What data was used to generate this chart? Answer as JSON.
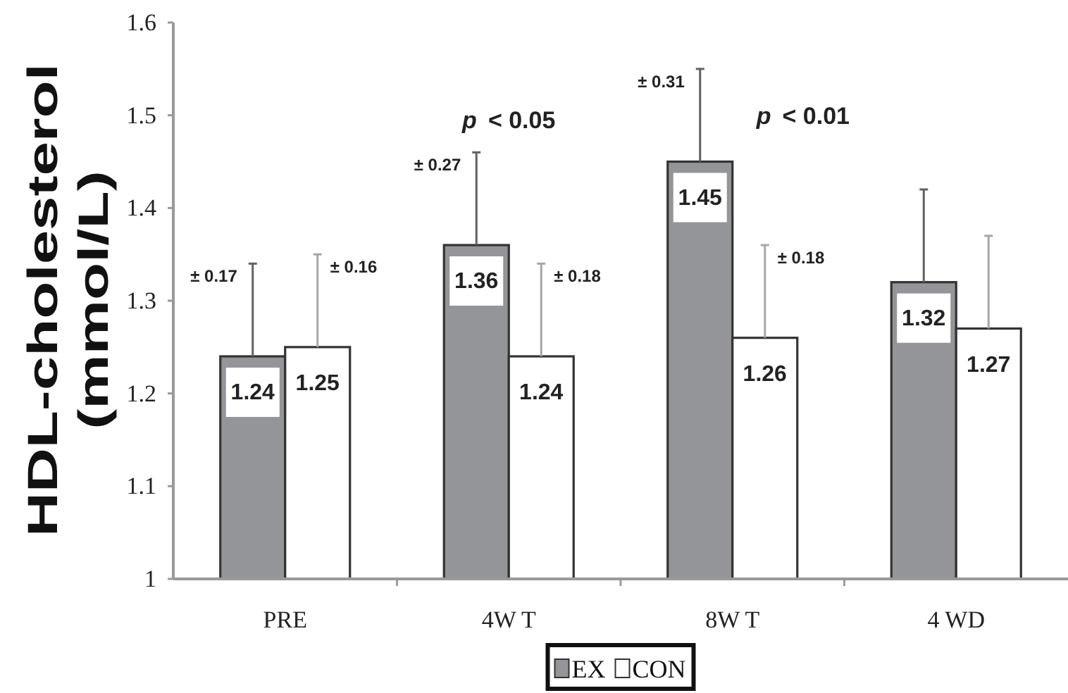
{
  "chart_data": {
    "type": "bar",
    "ylabel": "HDL-cholesterol (mmol/L)",
    "categories": [
      "PRE",
      "4W T",
      "8W T",
      "4 WD"
    ],
    "series": [
      {
        "name": "EX",
        "color": "#939598",
        "values": [
          1.24,
          1.36,
          1.45,
          1.32
        ],
        "errors": [
          [
            1.24,
            1.34
          ],
          [
            1.36,
            1.46
          ],
          [
            1.45,
            1.55
          ],
          [
            1.32,
            1.42
          ]
        ]
      },
      {
        "name": "CON",
        "color": "#ffffff",
        "values": [
          1.25,
          1.24,
          1.26,
          1.27
        ],
        "errors": [
          [
            1.25,
            1.35
          ],
          [
            1.24,
            1.34
          ],
          [
            1.26,
            1.36
          ],
          [
            1.27,
            1.37
          ]
        ]
      }
    ],
    "ylim": [
      1,
      1.6
    ],
    "yticks": [
      1,
      1.1,
      1.2,
      1.3,
      1.4,
      1.5,
      1.6
    ],
    "data_labels": true,
    "legend": "bottom",
    "annotations": [
      "± 0.17",
      "± 0.16",
      "± 0.27",
      "± 0.18",
      "± 0.31",
      "± 0.18",
      "p < 0.05",
      "p < 0.01"
    ]
  }
}
